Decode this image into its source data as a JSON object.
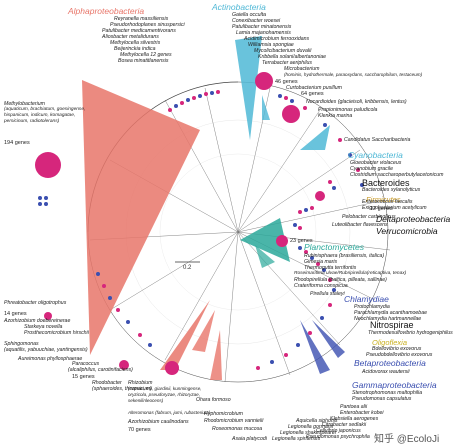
{
  "groups": {
    "alphaproteobacteria": "Alphaproteobacteria",
    "actinobacteria": "Actinobacteria",
    "cyanobacteria": "Cyanobacteria",
    "bacteroides": "Bacteroides",
    "firmicutes": "Firmicutes",
    "deltaproteobacteria": "Deltaproteobacteria",
    "verrucomicrobia": "Verrucomicrobia",
    "planctomycetes": "Planctomycetes",
    "chlamydiae": "Chlamydiae",
    "nitrospirae": "Nitrospirae",
    "oligoflexia": "Oligoflexia",
    "betaproteobacteria": "Betaproteobacteria",
    "gammaproteobacteria": "Gammaproteobacteria"
  },
  "group_colors": {
    "alphaproteobacteria": "#e8766a",
    "actinobacteria": "#4fb8d6",
    "cyanobacteria": "#4fb8d6",
    "bacteroides": "#111111",
    "firmicutes": "#c79a2a",
    "deltaproteobacteria": "#111111",
    "verrucomicrobia": "#111111",
    "planctomycetes": "#2aa89a",
    "chlamydiae": "#3b4fb0",
    "nitrospirae": "#111111",
    "oligoflexia": "#c9b020",
    "betaproteobacteria": "#3b4fb0",
    "gammaproteobacteria": "#3b4fb0"
  },
  "taxa_top": {
    "reyranella": "Reyranella massiliensis",
    "pseudorhodoplanes": "Pseudorhodoplanes sinuspersici",
    "patulibacter_med": "Patulibacter medicamentivorans",
    "aliosbacter": "Aliosbacter metalidurans",
    "methylocella": "Methylocella silvestris",
    "beijerinckia": "Beijerinckia indica",
    "methylocella12": "Methylocella 12 genes",
    "bosea": "Bosea minatitlanensis",
    "gaiella": "Gaiella occulta",
    "conexibacter": "Conexibacter woesei",
    "patulibacter_min": "Patulibacter minatonensis",
    "lamia": "Lamia majanohamensis",
    "acidimicrobium": "Acidimicrobium ferrooxidans",
    "williamsia": "Williamsia spongiae",
    "mycolicibacterium": "Mycolicibacterium duvalii",
    "kribbella": "Kribbella solani/albertanoniae",
    "terrabacter": "Terrabacter aeriphilus",
    "microbacterium": "Microbacterium",
    "microbacterium_sub": "(hominis, hydrothermale, paraoxydans, saccharophilum, testaceum)",
    "curtobacterium": "Curtobacterium pusillum",
    "nocardioides": "Nocardioides (glacieisoli, kribbensis, lentus)",
    "propionimonas": "Propionimonas paludicola",
    "kleinia": "Klenkia marina"
  },
  "counts": {
    "actino46": "46 genes",
    "actino64": "64 genes",
    "methylo194": "194 genes",
    "firmi12": "12 genes",
    "planct23": "23 genes",
    "phreato14": "14 genes",
    "paracoccus15": "15 genes",
    "rhizobium70": "70 genes"
  },
  "taxa_left": {
    "methylobacterium": "Methylobacterium",
    "methylo_sub": "(aquaticum, brachiatum, goesingense, hispanicum, indicum, komagatae, persicinum, radiotolerans)",
    "phreatobacter": "Phreatobacter oligotrophus",
    "azorhizobium_doe": "Azorhizobium doebereinerae",
    "starkeya": "Starkeya novella",
    "prosthecomicrobium": "Prosthecomicrobium hirschii",
    "sphingomonas": "Sphingomonas",
    "sphingo_sub": "(aquatilis, yabuuchiae, yantingensis)",
    "aureimonas": "Aureimonas phyllosphaerae",
    "paracoccus": "Paracoccus",
    "paracoccus_sub": "(alcaliphilus, carotinifaciens)",
    "rhodobacter": "Rhodobacter",
    "rhodobacter_sub": "(sphaeroides, thermarum)",
    "rhizobium": "Rhizobium",
    "rhizobium_sub": "(capsici, etli, giardinii, kunmingense, oryzicola, pseudoryzae, rhizoryzae, sekenilinleocens)",
    "rhizobium_sub2": "Alteromonas (fabrum, jumi, rubacterium)",
    "azorhizobium_cau": "Azorhizobium caulinodans",
    "ohara": "Ohara formoso",
    "hyphomicrobium": "Hyphomicrobium",
    "rhodomicrobium": "Rhodomicrobium vannielii",
    "roseomonas": "Roseomonas mucosa",
    "asaia": "Asaia platycodi"
  },
  "taxa_right": {
    "cand_saccharibacteria": "Candidatus Saccharibacteria",
    "gloeobacter": "Gloeobacter violaceus",
    "cyanobium": "Cyanobium gracile",
    "clostridium": "Clostridium saccharoperbutylacetonicum",
    "bacteroides_xyl": "Bacteroides xylanolyticus",
    "enterococcus": "Enterococcus faecalis",
    "exiguobacterium": "Exiguobacterium acetylicum",
    "pelobacter": "Pelobacter carbinolicus",
    "luteolibacter": "Luteolibacter flavescens",
    "rubinisphaera": "Rubinisphaera (brasiliensis, italica)",
    "gimesia": "Gimesia maris",
    "thermogutta": "Thermogutta terrifontis",
    "rosemonas_uvaria": "Roseimaritima ulvae/Rubripirellula(reticaptiva, tenax)",
    "rhodopirellula": "Rhodopirellula (baltica, pilleata, sallinae)",
    "crateriforma": "Crateriforma conspicua",
    "pirellula": "Pirellula staleyi",
    "protochlamydia": "Protochlamydia",
    "parachlamydia": "Parachlamydia acanthamoebae",
    "neochlamydia": "Neochlamydia hartmannellae",
    "thermodesulfovibrio": "Thermodesulfovibrio hydrogeniphilus",
    "bdellovibrio": "Bdellovibrio exovorus",
    "pseudobdellovibrio": "Pseudobdellovibrio exovorus",
    "acidovorax": "Acidovorax wautersii",
    "stenotrophomonas": "Stenotrophomonas maltophilia",
    "pseudomonas_cap": "Pseudomonas capsulatus",
    "pantoea": "Pantoea alii",
    "enterobacter": "Enterobacter kobei",
    "klebsiella": "Klebsiella aerogenes",
    "citrobacter": "Citrobacter sedlakii",
    "cellvibrio": "Cellvibrio japonicus",
    "pseudomonas_ps": "Pseudomonas psychrophila",
    "aquicella": "Aquicella siphonis",
    "legionella_gor": "Legionella gormanii",
    "legionella_shak": "Legionella shakespearei",
    "legionella_sp": "Legionella spiritensis"
  },
  "scale_label": "0.2",
  "watermark": "知乎 @EcoloJi"
}
